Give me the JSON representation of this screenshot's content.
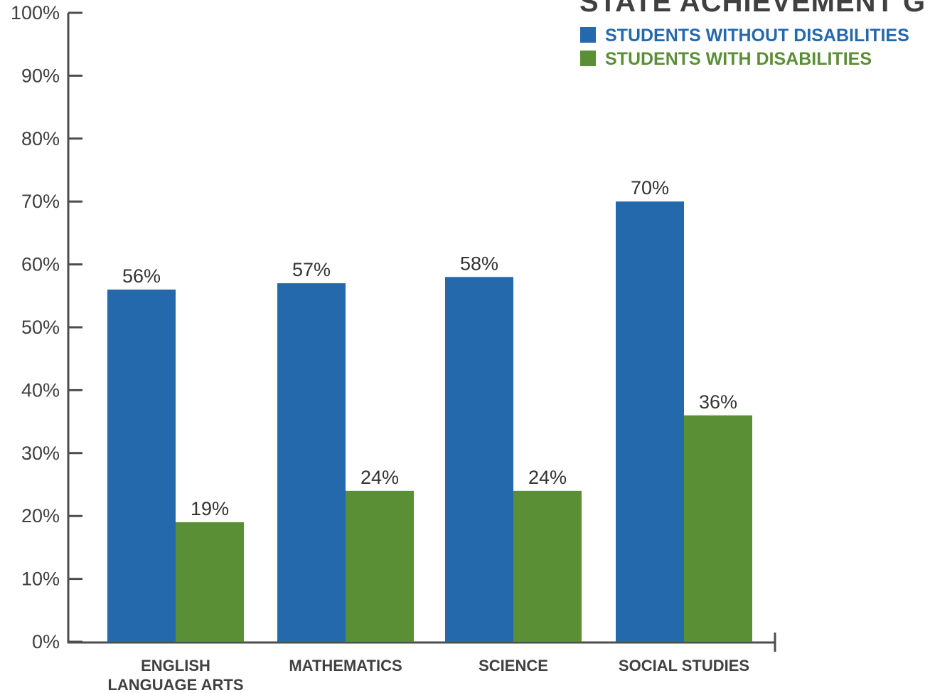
{
  "chart_data": {
    "type": "bar",
    "title": "STATE ACHIEVEMENT G",
    "categories": [
      [
        "ENGLISH",
        "LANGUAGE ARTS"
      ],
      [
        "MATHEMATICS"
      ],
      [
        "SCIENCE"
      ],
      [
        "SOCIAL STUDIES"
      ]
    ],
    "series": [
      {
        "name": "STUDENTS WITHOUT DISABILITIES",
        "color": "#2569ad",
        "values": [
          56,
          57,
          58,
          70
        ],
        "value_labels": [
          "56%",
          "57%",
          "58%",
          "70%"
        ]
      },
      {
        "name": "STUDENTS WITH DISABILITIES",
        "color": "#5b8f36",
        "values": [
          19,
          24,
          24,
          36
        ],
        "value_labels": [
          "19%",
          "24%",
          "24%",
          "36%"
        ]
      }
    ],
    "ylim": [
      0,
      100
    ],
    "yticks": [
      0,
      10,
      20,
      30,
      40,
      50,
      60,
      70,
      80,
      90,
      100
    ],
    "ytick_labels": [
      "0%",
      "10%",
      "20%",
      "30%",
      "40%",
      "50%",
      "60%",
      "70%",
      "80%",
      "90%",
      "100%"
    ],
    "xlabel": "",
    "ylabel": "",
    "grid": false,
    "legend_position": "top-right"
  }
}
